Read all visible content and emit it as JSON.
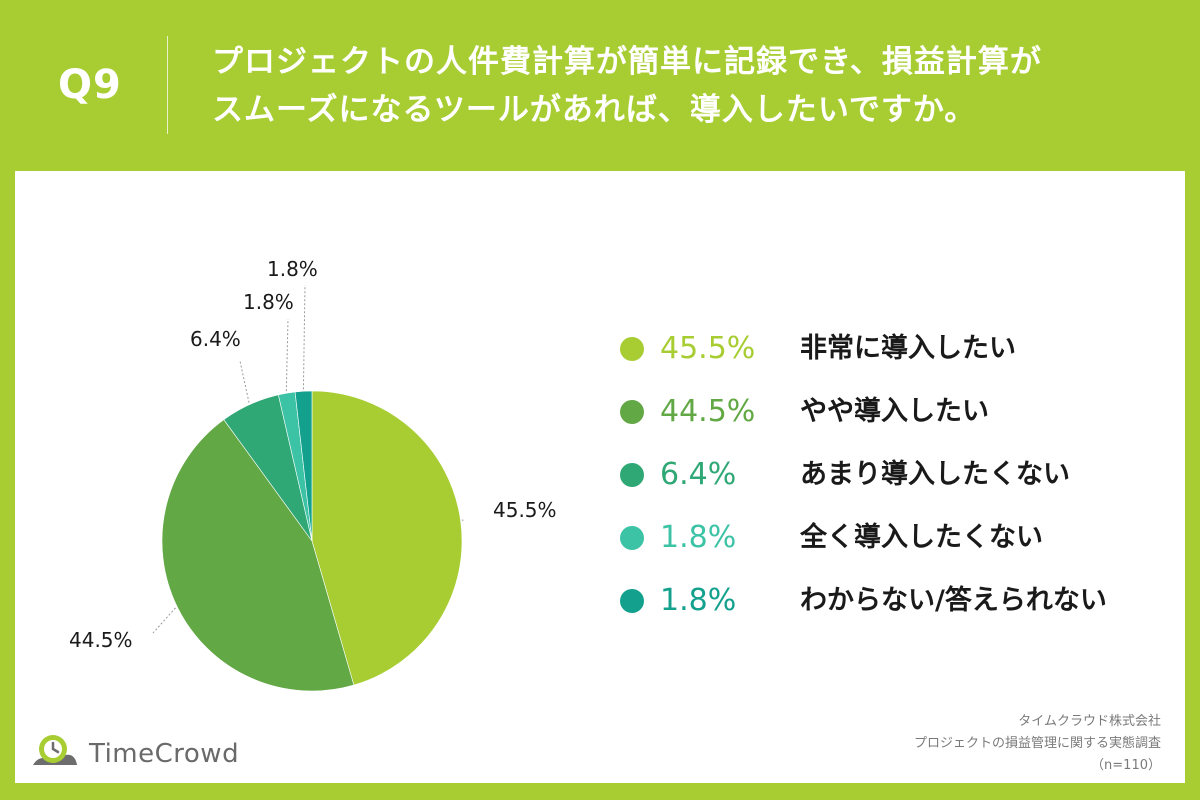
{
  "question": {
    "number": "Q9",
    "line1": "プロジェクトの人件費計算が簡単に記録でき、損益計算が",
    "line2": "スムーズになるツールがあれば、導入したいですか。"
  },
  "chart_data": {
    "type": "pie",
    "slices": [
      {
        "label": "非常に導入したい",
        "value": 45.5,
        "display": "45.5%",
        "color": "#a8cd33"
      },
      {
        "label": "やや導入したい",
        "value": 44.5,
        "display": "44.5%",
        "color": "#62a845"
      },
      {
        "label": "あまり導入したくない",
        "value": 6.4,
        "display": "6.4%",
        "color": "#2fa876"
      },
      {
        "label": "全く導入したくない",
        "value": 1.8,
        "display": "1.8%",
        "color": "#3cc3a6"
      },
      {
        "label": "わからない/答えられない",
        "value": 1.8,
        "display": "1.8%",
        "color": "#13a18e"
      }
    ],
    "start": "12 o'clock",
    "direction": "clockwise",
    "legend_placement": "right"
  },
  "brand": {
    "name": "TimeCrowd",
    "colors": [
      "#a8cd33",
      "#62a845",
      "#3cc3a6",
      "#13a18e"
    ]
  },
  "source": {
    "company": "タイムクラウド株式会社",
    "survey": "プロジェクトの損益管理に関する実態調査",
    "sample": "（n=110）"
  }
}
